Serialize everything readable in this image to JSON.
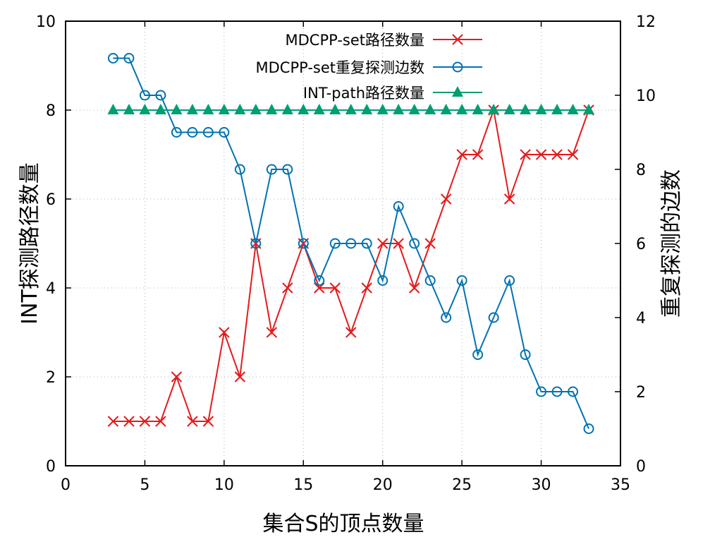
{
  "chart_data": {
    "type": "line",
    "xlabel": "集合S的顶点数量",
    "ylabel": "INT探测路径数量",
    "y2label": "重复探测的边数",
    "xlim": [
      0,
      35
    ],
    "ylim": [
      0,
      10
    ],
    "y2lim": [
      0,
      12
    ],
    "xticks": [
      0,
      5,
      10,
      15,
      20,
      25,
      30,
      35
    ],
    "yticks": [
      0,
      2,
      4,
      6,
      8,
      10
    ],
    "y2ticks": [
      0,
      2,
      4,
      6,
      8,
      10,
      12
    ],
    "grid": true,
    "legend_position": "top-center",
    "x": [
      3,
      4,
      5,
      6,
      7,
      8,
      9,
      10,
      11,
      12,
      13,
      14,
      15,
      16,
      17,
      18,
      19,
      20,
      21,
      22,
      23,
      24,
      25,
      26,
      27,
      28,
      29,
      30,
      31,
      32,
      33
    ],
    "series": [
      {
        "name": "MDCPP-set路径数量",
        "axis": "left",
        "marker": "x",
        "color": "#e41a1c",
        "values": [
          1,
          1,
          1,
          1,
          2,
          1,
          1,
          3,
          2,
          5,
          3,
          4,
          5,
          4,
          4,
          3,
          4,
          5,
          5,
          4,
          5,
          6,
          7,
          7,
          8,
          6,
          7,
          7,
          7,
          7,
          8
        ]
      },
      {
        "name": "MDCPP-set重复探测边数",
        "axis": "right",
        "marker": "circle",
        "color": "#0072b2",
        "values": [
          11,
          11,
          10,
          10,
          9,
          9,
          9,
          9,
          8,
          6,
          8,
          8,
          6,
          5,
          6,
          6,
          6,
          5,
          7,
          6,
          5,
          4,
          5,
          3,
          4,
          5,
          3,
          2,
          2,
          2,
          1
        ]
      },
      {
        "name": "INT-path路径数量",
        "axis": "left",
        "marker": "triangle",
        "color": "#009e73",
        "values": [
          8,
          8,
          8,
          8,
          8,
          8,
          8,
          8,
          8,
          8,
          8,
          8,
          8,
          8,
          8,
          8,
          8,
          8,
          8,
          8,
          8,
          8,
          8,
          8,
          8,
          8,
          8,
          8,
          8,
          8,
          8
        ]
      }
    ]
  }
}
